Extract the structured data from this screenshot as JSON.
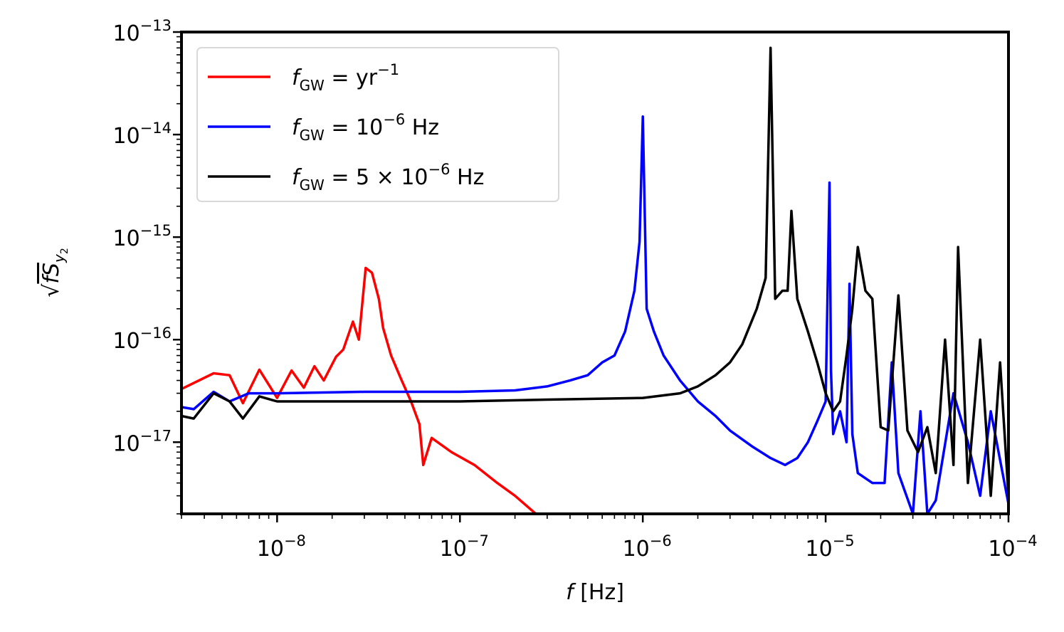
{
  "chart_data": {
    "type": "line",
    "title": "",
    "xlabel": {
      "var": "f",
      "unit": "[Hz]"
    },
    "ylabel": {
      "sqrt": "√",
      "var": "fS",
      "sub": "y",
      "subsub": "2"
    },
    "xscale": "log",
    "yscale": "log",
    "xlim": [
      3e-09,
      0.0001
    ],
    "ylim": [
      2e-18,
      1e-13
    ],
    "x_ticks": [
      {
        "value": 1e-08,
        "base": "10",
        "exp": "−8"
      },
      {
        "value": 1e-07,
        "base": "10",
        "exp": "−7"
      },
      {
        "value": 1e-06,
        "base": "10",
        "exp": "−6"
      },
      {
        "value": 1e-05,
        "base": "10",
        "exp": "−5"
      },
      {
        "value": 0.0001,
        "base": "10",
        "exp": "−4"
      }
    ],
    "y_ticks": [
      {
        "value": 1e-17,
        "base": "10",
        "exp": "−17"
      },
      {
        "value": 1e-16,
        "base": "10",
        "exp": "−16"
      },
      {
        "value": 1e-15,
        "base": "10",
        "exp": "−15"
      },
      {
        "value": 1e-14,
        "base": "10",
        "exp": "−14"
      },
      {
        "value": 1e-13,
        "base": "10",
        "exp": "−13"
      }
    ],
    "legend_position": "top-left",
    "grid": false,
    "series": [
      {
        "name": "fGW = yr^-1",
        "legend": {
          "var": "f",
          "sub": "GW",
          "rel": " = ",
          "text": "yr",
          "exp": "−1",
          "suffix": ""
        },
        "color": "#ff0000",
        "x": [
          3e-09,
          4.5e-09,
          5.5e-09,
          6.5e-09,
          8e-09,
          1e-08,
          1.2e-08,
          1.4e-08,
          1.6e-08,
          1.8e-08,
          2.1e-08,
          2.3e-08,
          2.6e-08,
          2.8e-08,
          3.05e-08,
          3.3e-08,
          3.6e-08,
          3.8e-08,
          4.2e-08,
          4.8e-08,
          5.4e-08,
          6e-08,
          6.3e-08,
          7e-08,
          9e-08,
          1.2e-07,
          1.6e-07,
          2e-07,
          2.6e-07
        ],
        "y": [
          3.3e-17,
          4.7e-17,
          4.5e-17,
          2.4e-17,
          5.1e-17,
          2.7e-17,
          5e-17,
          3.4e-17,
          5.5e-17,
          4e-17,
          6.8e-17,
          8e-17,
          1.5e-16,
          1e-16,
          5e-16,
          4.5e-16,
          2.5e-16,
          1.3e-16,
          7e-17,
          4e-17,
          2.5e-17,
          1.5e-17,
          6e-18,
          1.1e-17,
          8e-18,
          6e-18,
          4e-18,
          3e-18,
          2e-18
        ]
      },
      {
        "name": "fGW = 1e-6 Hz",
        "legend": {
          "var": "f",
          "sub": "GW",
          "rel": " = ",
          "text": "10",
          "exp": "−6",
          "suffix": " Hz"
        },
        "color": "#0000ff",
        "x": [
          3e-09,
          3.5e-09,
          4.5e-09,
          5.5e-09,
          7e-09,
          1e-08,
          3e-08,
          1e-07,
          2e-07,
          3e-07,
          4e-07,
          5e-07,
          6e-07,
          7e-07,
          8e-07,
          9e-07,
          9.6e-07,
          1e-06,
          1.05e-06,
          1.15e-06,
          1.3e-06,
          1.6e-06,
          2e-06,
          2.5e-06,
          3e-06,
          4e-06,
          5e-06,
          6e-06,
          7e-06,
          8e-06,
          9e-06,
          1e-05,
          1.05e-05,
          1.07e-05,
          1.1e-05,
          1.2e-05,
          1.3e-05,
          1.35e-05,
          1.4e-05,
          1.5e-05,
          1.8e-05,
          2.1e-05,
          2.3e-05,
          2.5e-05,
          3e-05,
          3.3e-05,
          3.6e-05,
          4e-05,
          5e-05,
          6e-05,
          7e-05,
          8e-05,
          0.0001
        ],
        "y": [
          2.2e-17,
          2.1e-17,
          3.1e-17,
          2.5e-17,
          3e-17,
          3e-17,
          3.1e-17,
          3.1e-17,
          3.2e-17,
          3.5e-17,
          4e-17,
          4.5e-17,
          6e-17,
          7e-17,
          1.2e-16,
          3e-16,
          9e-16,
          1.5e-14,
          2e-16,
          1.2e-16,
          7e-17,
          4e-17,
          2.5e-17,
          1.8e-17,
          1.3e-17,
          9e-18,
          7e-18,
          6e-18,
          7e-18,
          1e-17,
          1.6e-17,
          2.5e-17,
          3.4e-15,
          5e-17,
          1.2e-17,
          2e-17,
          1e-17,
          3.5e-16,
          1.2e-17,
          5e-18,
          4e-18,
          4e-18,
          6e-17,
          5e-18,
          2e-18,
          2e-17,
          2e-18,
          2.7e-18,
          3e-17,
          1e-17,
          3e-18,
          2e-17,
          2.5e-18
        ]
      },
      {
        "name": "fGW = 5e-6 Hz",
        "legend": {
          "var": "f",
          "sub": "GW",
          "rel": " = ",
          "text": "5 × 10",
          "exp": "−6",
          "suffix": " Hz"
        },
        "color": "#000000",
        "x": [
          3e-09,
          3.5e-09,
          4.5e-09,
          5.5e-09,
          6.5e-09,
          8e-09,
          1e-08,
          3e-08,
          1e-07,
          3e-07,
          1e-06,
          1.6e-06,
          2e-06,
          2.5e-06,
          3e-06,
          3.5e-06,
          4.2e-06,
          4.7e-06,
          5e-06,
          5.3e-06,
          5.8e-06,
          6.2e-06,
          6.5e-06,
          7e-06,
          8e-06,
          9e-06,
          1e-05,
          1.1e-05,
          1.2e-05,
          1.3e-05,
          1.4e-05,
          1.5e-05,
          1.65e-05,
          1.8e-05,
          2e-05,
          2.2e-05,
          2.5e-05,
          2.8e-05,
          3.2e-05,
          3.6e-05,
          4e-05,
          4.5e-05,
          5e-05,
          5.3e-05,
          6e-05,
          7e-05,
          8e-05,
          9e-05,
          0.0001
        ],
        "y": [
          1.8e-17,
          1.7e-17,
          3e-17,
          2.5e-17,
          1.7e-17,
          2.8e-17,
          2.5e-17,
          2.5e-17,
          2.5e-17,
          2.6e-17,
          2.7e-17,
          3e-17,
          3.5e-17,
          4.5e-17,
          6e-17,
          9e-17,
          2e-16,
          4e-16,
          7e-14,
          2.5e-16,
          3e-16,
          3e-16,
          1.8e-15,
          2.5e-16,
          1.2e-16,
          6e-17,
          3e-17,
          2e-17,
          2.5e-17,
          7e-17,
          2e-16,
          8e-16,
          3e-16,
          2.5e-16,
          1.4e-17,
          1.3e-17,
          2.7e-16,
          1.3e-17,
          8e-18,
          1.4e-17,
          5e-18,
          1e-16,
          6e-18,
          8e-16,
          4e-18,
          1e-16,
          3e-18,
          6e-17,
          3e-18
        ]
      }
    ]
  }
}
